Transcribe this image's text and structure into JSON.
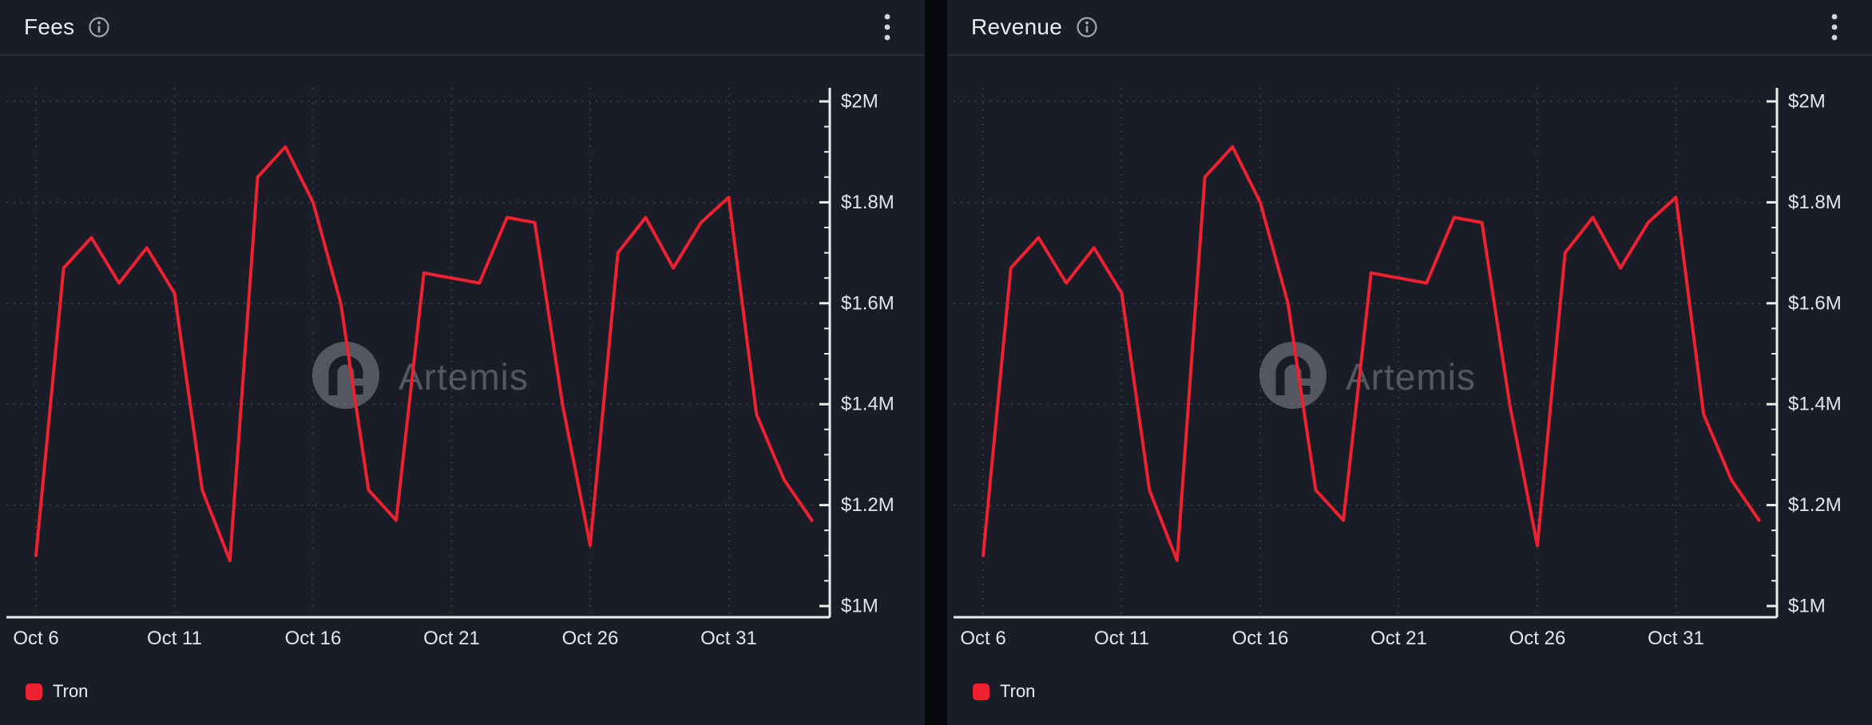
{
  "accent_red": "#ee2130",
  "watermark_text": "Artemis",
  "panels": [
    {
      "title": "Fees",
      "menu_icon": "kebab-menu-icon",
      "info_icon": "info-icon",
      "watermark": "Artemis",
      "legend": [
        {
          "label": "Tron",
          "color": "#ee2130"
        }
      ]
    },
    {
      "title": "Revenue",
      "menu_icon": "kebab-menu-icon",
      "info_icon": "info-icon",
      "watermark": "Artemis",
      "legend": [
        {
          "label": "Tron",
          "color": "#ee2130"
        }
      ]
    }
  ],
  "chart_data": [
    {
      "type": "line",
      "title": "Fees",
      "unit": "USD millions",
      "x": [
        "Oct 6",
        "Oct 7",
        "Oct 8",
        "Oct 9",
        "Oct 10",
        "Oct 11",
        "Oct 12",
        "Oct 13",
        "Oct 14",
        "Oct 15",
        "Oct 16",
        "Oct 17",
        "Oct 18",
        "Oct 19",
        "Oct 20",
        "Oct 21",
        "Oct 22",
        "Oct 23",
        "Oct 24",
        "Oct 25",
        "Oct 26",
        "Oct 27",
        "Oct 28",
        "Oct 29",
        "Oct 30",
        "Oct 31",
        "Nov 1",
        "Nov 2",
        "Nov 3"
      ],
      "series": [
        {
          "name": "Tron",
          "color": "#ee2130",
          "values": [
            1.1,
            1.67,
            1.73,
            1.64,
            1.71,
            1.62,
            1.23,
            1.09,
            1.85,
            1.91,
            1.8,
            1.6,
            1.23,
            1.17,
            1.66,
            1.65,
            1.64,
            1.77,
            1.76,
            1.4,
            1.12,
            1.7,
            1.77,
            1.67,
            1.76,
            1.81,
            1.38,
            1.25,
            1.17
          ]
        }
      ],
      "ylim": [
        1.0,
        2.0
      ],
      "y_ticks": [
        {
          "value": 1.0,
          "label": "$1M"
        },
        {
          "value": 1.2,
          "label": "$1.2M"
        },
        {
          "value": 1.4,
          "label": "$1.4M"
        },
        {
          "value": 1.6,
          "label": "$1.6M"
        },
        {
          "value": 1.8,
          "label": "$1.8M"
        },
        {
          "value": 2.0,
          "label": "$2M"
        }
      ],
      "x_ticks": [
        "Oct 6",
        "Oct 11",
        "Oct 16",
        "Oct 21",
        "Oct 26",
        "Oct 31"
      ],
      "grid": "dashed",
      "legend_position": "bottom-left",
      "y_axis_side": "right"
    },
    {
      "type": "line",
      "title": "Revenue",
      "unit": "USD millions",
      "x": [
        "Oct 6",
        "Oct 7",
        "Oct 8",
        "Oct 9",
        "Oct 10",
        "Oct 11",
        "Oct 12",
        "Oct 13",
        "Oct 14",
        "Oct 15",
        "Oct 16",
        "Oct 17",
        "Oct 18",
        "Oct 19",
        "Oct 20",
        "Oct 21",
        "Oct 22",
        "Oct 23",
        "Oct 24",
        "Oct 25",
        "Oct 26",
        "Oct 27",
        "Oct 28",
        "Oct 29",
        "Oct 30",
        "Oct 31",
        "Nov 1",
        "Nov 2",
        "Nov 3"
      ],
      "series": [
        {
          "name": "Tron",
          "color": "#ee2130",
          "values": [
            1.1,
            1.67,
            1.73,
            1.64,
            1.71,
            1.62,
            1.23,
            1.09,
            1.85,
            1.91,
            1.8,
            1.6,
            1.23,
            1.17,
            1.66,
            1.65,
            1.64,
            1.77,
            1.76,
            1.4,
            1.12,
            1.7,
            1.77,
            1.67,
            1.76,
            1.81,
            1.38,
            1.25,
            1.17
          ]
        }
      ],
      "ylim": [
        1.0,
        2.0
      ],
      "y_ticks": [
        {
          "value": 1.0,
          "label": "$1M"
        },
        {
          "value": 1.2,
          "label": "$1.2M"
        },
        {
          "value": 1.4,
          "label": "$1.4M"
        },
        {
          "value": 1.6,
          "label": "$1.6M"
        },
        {
          "value": 1.8,
          "label": "$1.8M"
        },
        {
          "value": 2.0,
          "label": "$2M"
        }
      ],
      "x_ticks": [
        "Oct 6",
        "Oct 11",
        "Oct 16",
        "Oct 21",
        "Oct 26",
        "Oct 31"
      ],
      "grid": "dashed",
      "legend_position": "bottom-left",
      "y_axis_side": "right"
    }
  ]
}
